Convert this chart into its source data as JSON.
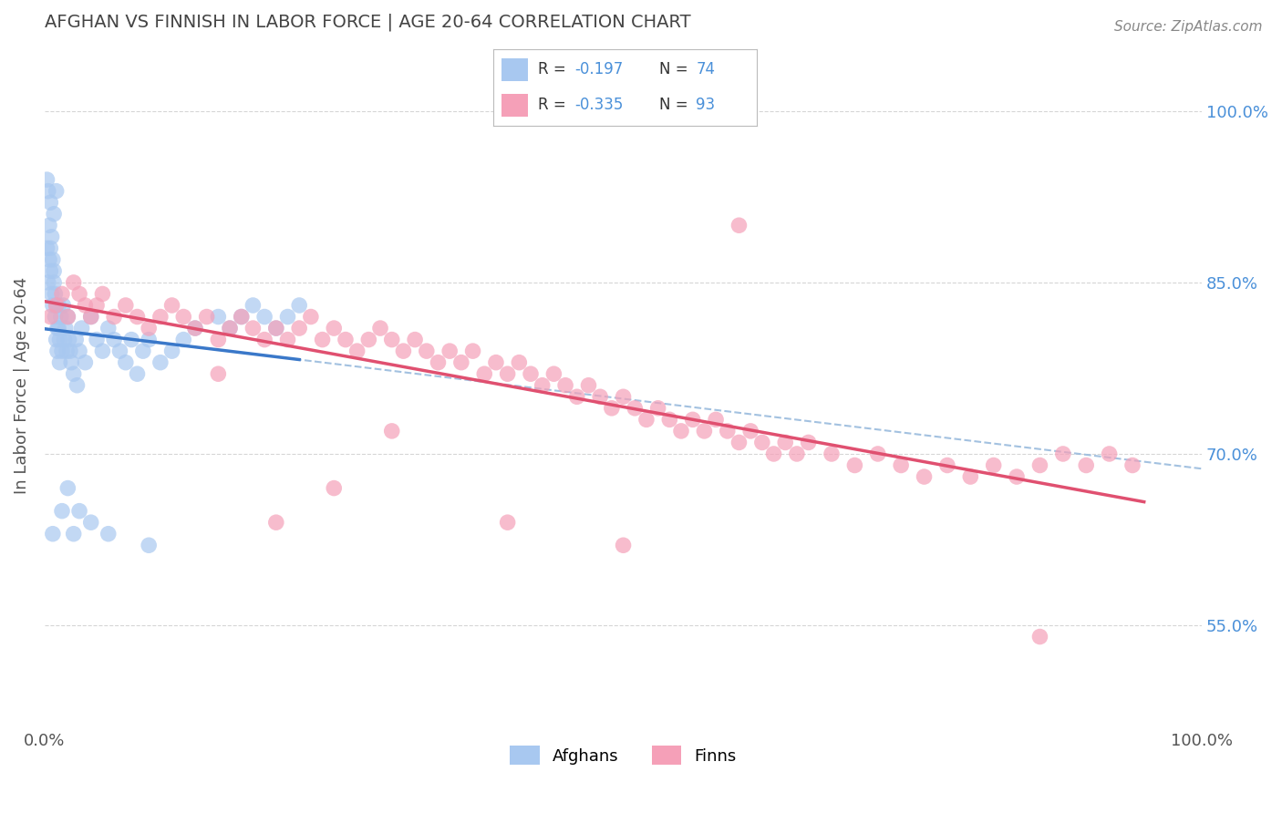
{
  "title": "AFGHAN VS FINNISH IN LABOR FORCE | AGE 20-64 CORRELATION CHART",
  "source_text": "Source: ZipAtlas.com",
  "ylabel": "In Labor Force | Age 20-64",
  "xlim": [
    0.0,
    1.0
  ],
  "ylim": [
    0.46,
    1.06
  ],
  "yticks": [
    0.55,
    0.7,
    0.85,
    1.0
  ],
  "ytick_labels": [
    "55.0%",
    "70.0%",
    "85.0%",
    "100.0%"
  ],
  "xticks": [
    0.0,
    1.0
  ],
  "xtick_labels": [
    "0.0%",
    "100.0%"
  ],
  "legend_R_afghan": "-0.197",
  "legend_N_afghan": "74",
  "legend_R_finn": "-0.335",
  "legend_N_finn": "93",
  "afghan_color": "#a8c8f0",
  "finn_color": "#f5a0b8",
  "trend_afghan_color": "#3a78c9",
  "trend_finn_color": "#e05070",
  "trend_dashed_color": "#99bbdd",
  "background_color": "#ffffff",
  "grid_color": "#cccccc",
  "title_color": "#444444",
  "label_color": "#4a90d9",
  "afghan_x": [
    0.002,
    0.003,
    0.004,
    0.004,
    0.005,
    0.005,
    0.006,
    0.006,
    0.007,
    0.007,
    0.008,
    0.008,
    0.009,
    0.009,
    0.01,
    0.01,
    0.011,
    0.011,
    0.012,
    0.012,
    0.013,
    0.013,
    0.014,
    0.015,
    0.016,
    0.017,
    0.018,
    0.019,
    0.02,
    0.021,
    0.022,
    0.023,
    0.025,
    0.027,
    0.028,
    0.03,
    0.032,
    0.035,
    0.04,
    0.045,
    0.05,
    0.055,
    0.06,
    0.065,
    0.07,
    0.075,
    0.08,
    0.085,
    0.09,
    0.1,
    0.11,
    0.12,
    0.13,
    0.15,
    0.16,
    0.17,
    0.18,
    0.19,
    0.2,
    0.21,
    0.22,
    0.01,
    0.008,
    0.005,
    0.003,
    0.002,
    0.007,
    0.015,
    0.02,
    0.025,
    0.03,
    0.04,
    0.055,
    0.09
  ],
  "afghan_y": [
    0.88,
    0.85,
    0.9,
    0.87,
    0.86,
    0.88,
    0.84,
    0.89,
    0.83,
    0.87,
    0.85,
    0.86,
    0.82,
    0.84,
    0.8,
    0.83,
    0.81,
    0.79,
    0.83,
    0.81,
    0.8,
    0.78,
    0.82,
    0.79,
    0.83,
    0.8,
    0.81,
    0.79,
    0.82,
    0.8,
    0.79,
    0.78,
    0.77,
    0.8,
    0.76,
    0.79,
    0.81,
    0.78,
    0.82,
    0.8,
    0.79,
    0.81,
    0.8,
    0.79,
    0.78,
    0.8,
    0.77,
    0.79,
    0.8,
    0.78,
    0.79,
    0.8,
    0.81,
    0.82,
    0.81,
    0.82,
    0.83,
    0.82,
    0.81,
    0.82,
    0.83,
    0.93,
    0.91,
    0.92,
    0.93,
    0.94,
    0.63,
    0.65,
    0.67,
    0.63,
    0.65,
    0.64,
    0.63,
    0.62
  ],
  "finn_x": [
    0.005,
    0.01,
    0.015,
    0.02,
    0.025,
    0.03,
    0.035,
    0.04,
    0.045,
    0.05,
    0.06,
    0.07,
    0.08,
    0.09,
    0.1,
    0.11,
    0.12,
    0.13,
    0.14,
    0.15,
    0.16,
    0.17,
    0.18,
    0.19,
    0.2,
    0.21,
    0.22,
    0.23,
    0.24,
    0.25,
    0.26,
    0.27,
    0.28,
    0.29,
    0.3,
    0.31,
    0.32,
    0.33,
    0.34,
    0.35,
    0.36,
    0.37,
    0.38,
    0.39,
    0.4,
    0.41,
    0.42,
    0.43,
    0.44,
    0.45,
    0.46,
    0.47,
    0.48,
    0.49,
    0.5,
    0.51,
    0.52,
    0.53,
    0.54,
    0.55,
    0.56,
    0.57,
    0.58,
    0.59,
    0.6,
    0.61,
    0.62,
    0.63,
    0.64,
    0.65,
    0.66,
    0.68,
    0.7,
    0.72,
    0.74,
    0.76,
    0.78,
    0.8,
    0.82,
    0.84,
    0.86,
    0.88,
    0.9,
    0.92,
    0.94,
    0.25,
    0.3,
    0.15,
    0.2,
    0.4,
    0.5,
    0.6,
    0.86
  ],
  "finn_y": [
    0.82,
    0.83,
    0.84,
    0.82,
    0.85,
    0.84,
    0.83,
    0.82,
    0.83,
    0.84,
    0.82,
    0.83,
    0.82,
    0.81,
    0.82,
    0.83,
    0.82,
    0.81,
    0.82,
    0.8,
    0.81,
    0.82,
    0.81,
    0.8,
    0.81,
    0.8,
    0.81,
    0.82,
    0.8,
    0.81,
    0.8,
    0.79,
    0.8,
    0.81,
    0.8,
    0.79,
    0.8,
    0.79,
    0.78,
    0.79,
    0.78,
    0.79,
    0.77,
    0.78,
    0.77,
    0.78,
    0.77,
    0.76,
    0.77,
    0.76,
    0.75,
    0.76,
    0.75,
    0.74,
    0.75,
    0.74,
    0.73,
    0.74,
    0.73,
    0.72,
    0.73,
    0.72,
    0.73,
    0.72,
    0.71,
    0.72,
    0.71,
    0.7,
    0.71,
    0.7,
    0.71,
    0.7,
    0.69,
    0.7,
    0.69,
    0.68,
    0.69,
    0.68,
    0.69,
    0.68,
    0.69,
    0.7,
    0.69,
    0.7,
    0.69,
    0.67,
    0.72,
    0.77,
    0.64,
    0.64,
    0.62,
    0.9,
    0.54
  ]
}
